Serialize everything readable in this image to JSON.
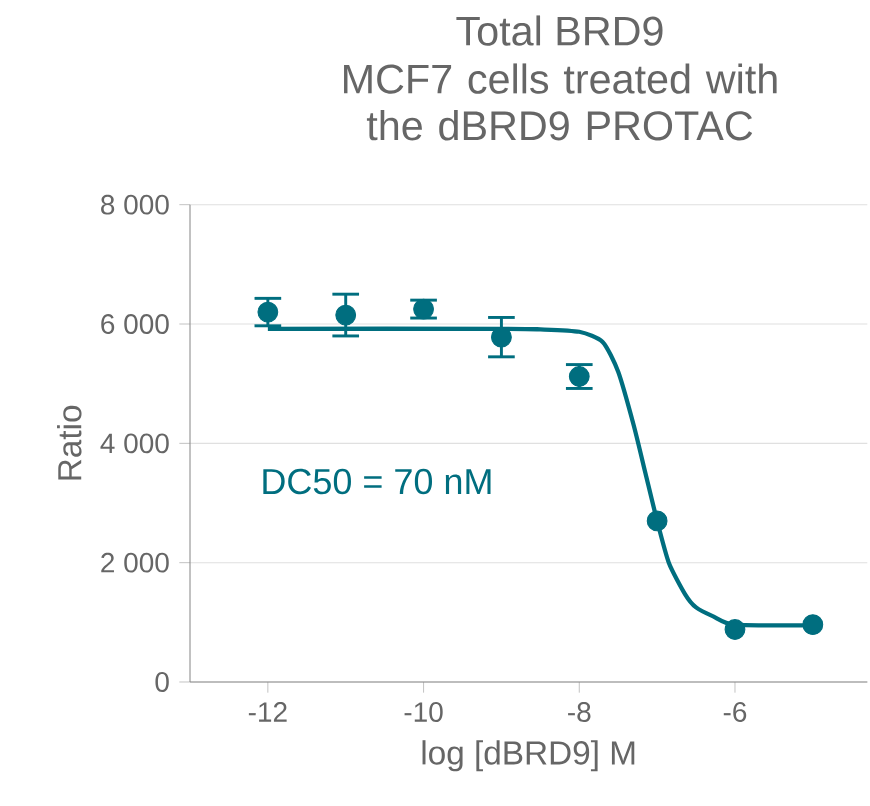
{
  "chart_data": {
    "type": "scatter",
    "title": "Total BRD9",
    "subtitle": "MCF7 cells  treated with the dBRD9 PROTAC",
    "xlabel": "log [dBRD9] M",
    "ylabel": "Ratio",
    "annotations": [
      "DC50 = 70 nM"
    ],
    "xlim": [
      -13,
      -4.3
    ],
    "xticks": [
      -12,
      -10,
      -8,
      -6
    ],
    "ylim": [
      0,
      8000
    ],
    "yticks": [
      {
        "value": 0,
        "label": "0"
      },
      {
        "value": 2000,
        "label": "2 000"
      },
      {
        "value": 4000,
        "label": "4 000"
      },
      {
        "value": 6000,
        "label": "6 000"
      },
      {
        "value": 8000,
        "label": "8 000"
      }
    ],
    "grid": "y",
    "series": [
      {
        "marker": "circle",
        "color": "#006e7f",
        "x": [
          -12,
          -11,
          -10,
          -9,
          -8,
          -7,
          -6,
          -5
        ],
        "values": [
          6200,
          6150,
          6250,
          5780,
          5120,
          2700,
          880,
          960
        ],
        "errors": [
          230,
          350,
          150,
          330,
          200,
          null,
          null,
          null
        ]
      },
      {
        "type": "line",
        "marker": "none",
        "color": "#006e7f",
        "x": [
          -12,
          -9,
          -8.5,
          -8,
          -7.7,
          -7.5,
          -7.3,
          -7.15,
          -7,
          -6.85,
          -6.64,
          -6.5,
          -6.28,
          -6,
          -5
        ],
        "values": [
          5920,
          5920,
          5910,
          5870,
          5700,
          5200,
          4300,
          3500,
          2700,
          2000,
          1470,
          1250,
          1100,
          960,
          950
        ]
      }
    ]
  }
}
